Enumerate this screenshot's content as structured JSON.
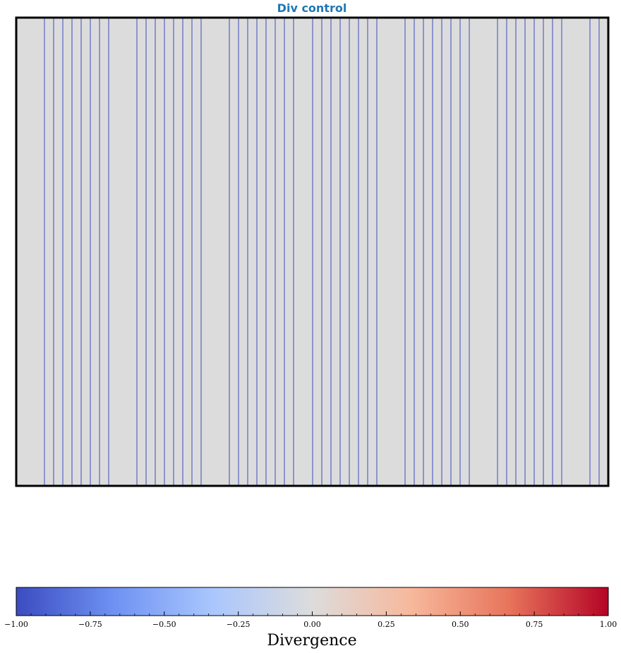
{
  "chart_data": {
    "type": "heatmap",
    "title": "Div control",
    "title_color": "#1f77b4",
    "panel_background": "#dcdcdc",
    "line_color": "#3b4cc0",
    "line_x": [
      40,
      53,
      66,
      79,
      92,
      105,
      118,
      131,
      171,
      184,
      197,
      210,
      223,
      236,
      249,
      262,
      302,
      315,
      328,
      341,
      354,
      367,
      380,
      393,
      420,
      433,
      446,
      459,
      472,
      485,
      498,
      511,
      551,
      564,
      577,
      590,
      603,
      616,
      629,
      642,
      682,
      695,
      708,
      721,
      734,
      747,
      760,
      773,
      813,
      826
    ],
    "x_range": [
      0,
      839
    ],
    "colorbar": {
      "label": "Divergence",
      "range": [
        -1.0,
        1.0
      ],
      "colormap": "coolwarm",
      "colors": [
        "#3b4cc0",
        "#6f92f3",
        "#aac7fd",
        "#dddcdc",
        "#f7b89c",
        "#e7745b",
        "#b40426"
      ],
      "ticks": [
        "−1.00",
        "−0.75",
        "−0.50",
        "−0.25",
        "0.00",
        "0.25",
        "0.50",
        "0.75",
        "1.00"
      ]
    }
  }
}
